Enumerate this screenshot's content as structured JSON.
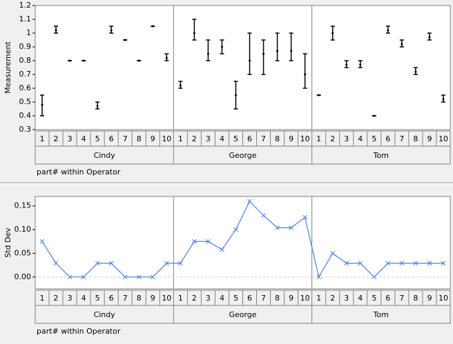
{
  "chart_data": [
    {
      "type": "variability",
      "y_label": "Measurement",
      "x_label": "part# within Operator",
      "categories": [
        "1",
        "2",
        "3",
        "4",
        "5",
        "6",
        "7",
        "8",
        "9",
        "10",
        "1",
        "2",
        "3",
        "4",
        "5",
        "6",
        "7",
        "8",
        "9",
        "10",
        "1",
        "2",
        "3",
        "4",
        "5",
        "6",
        "7",
        "8",
        "9",
        "10"
      ],
      "groups": [
        "Cindy",
        "George",
        "Tom"
      ],
      "low": [
        0.4,
        1.0,
        0.8,
        0.8,
        0.45,
        1.0,
        0.95,
        0.8,
        1.05,
        0.8,
        0.6,
        0.95,
        0.8,
        0.85,
        0.45,
        0.7,
        0.7,
        0.8,
        0.8,
        0.6,
        0.55,
        0.95,
        0.75,
        0.75,
        0.4,
        1.0,
        0.9,
        0.7,
        0.95,
        0.5
      ],
      "high": [
        0.55,
        1.05,
        0.8,
        0.8,
        0.5,
        1.05,
        0.95,
        0.8,
        1.05,
        0.85,
        0.65,
        1.1,
        0.95,
        0.95,
        0.65,
        1.0,
        0.95,
        1.0,
        1.0,
        0.85,
        0.55,
        1.05,
        0.8,
        0.8,
        0.4,
        1.05,
        0.95,
        0.75,
        1.0,
        0.55
      ],
      "mean": [
        0.48,
        1.02,
        0.8,
        0.8,
        0.47,
        1.02,
        0.95,
        0.8,
        1.05,
        0.82,
        0.62,
        1.0,
        0.85,
        0.9,
        0.55,
        0.8,
        0.85,
        0.87,
        0.87,
        0.7,
        0.55,
        1.0,
        0.77,
        0.77,
        0.4,
        1.02,
        0.92,
        0.72,
        0.97,
        0.52
      ],
      "color": "#000000",
      "ylim": [
        0.3,
        1.2
      ],
      "yticks": [
        0.3,
        0.4,
        0.5,
        0.6,
        0.7,
        0.8,
        0.9,
        1,
        1.1,
        1.2
      ]
    },
    {
      "type": "line",
      "y_label": "Std Dev",
      "x_label": "part# within Operator",
      "categories": [
        "1",
        "2",
        "3",
        "4",
        "5",
        "6",
        "7",
        "8",
        "9",
        "10",
        "1",
        "2",
        "3",
        "4",
        "5",
        "6",
        "7",
        "8",
        "9",
        "10",
        "1",
        "2",
        "3",
        "4",
        "5",
        "6",
        "7",
        "8",
        "9",
        "10"
      ],
      "groups": [
        "Cindy",
        "George",
        "Tom"
      ],
      "values": [
        0.075,
        0.029,
        0,
        0,
        0.029,
        0.029,
        0,
        0,
        0,
        0.029,
        0.029,
        0.075,
        0.075,
        0.058,
        0.1,
        0.16,
        0.13,
        0.104,
        0.104,
        0.126,
        0,
        0.05,
        0.029,
        0.029,
        0,
        0.029,
        0.029,
        0.029,
        0.029,
        0.029
      ],
      "color": "#4a7fe0",
      "ylim": [
        -0.025,
        0.17
      ],
      "yticks": [
        {
          "value": 0,
          "label": "0.00"
        },
        {
          "value": 0.05,
          "label": "0.05"
        },
        {
          "value": 0.1,
          "label": "0.10"
        },
        {
          "value": 0.15,
          "label": "0.15"
        }
      ]
    }
  ]
}
